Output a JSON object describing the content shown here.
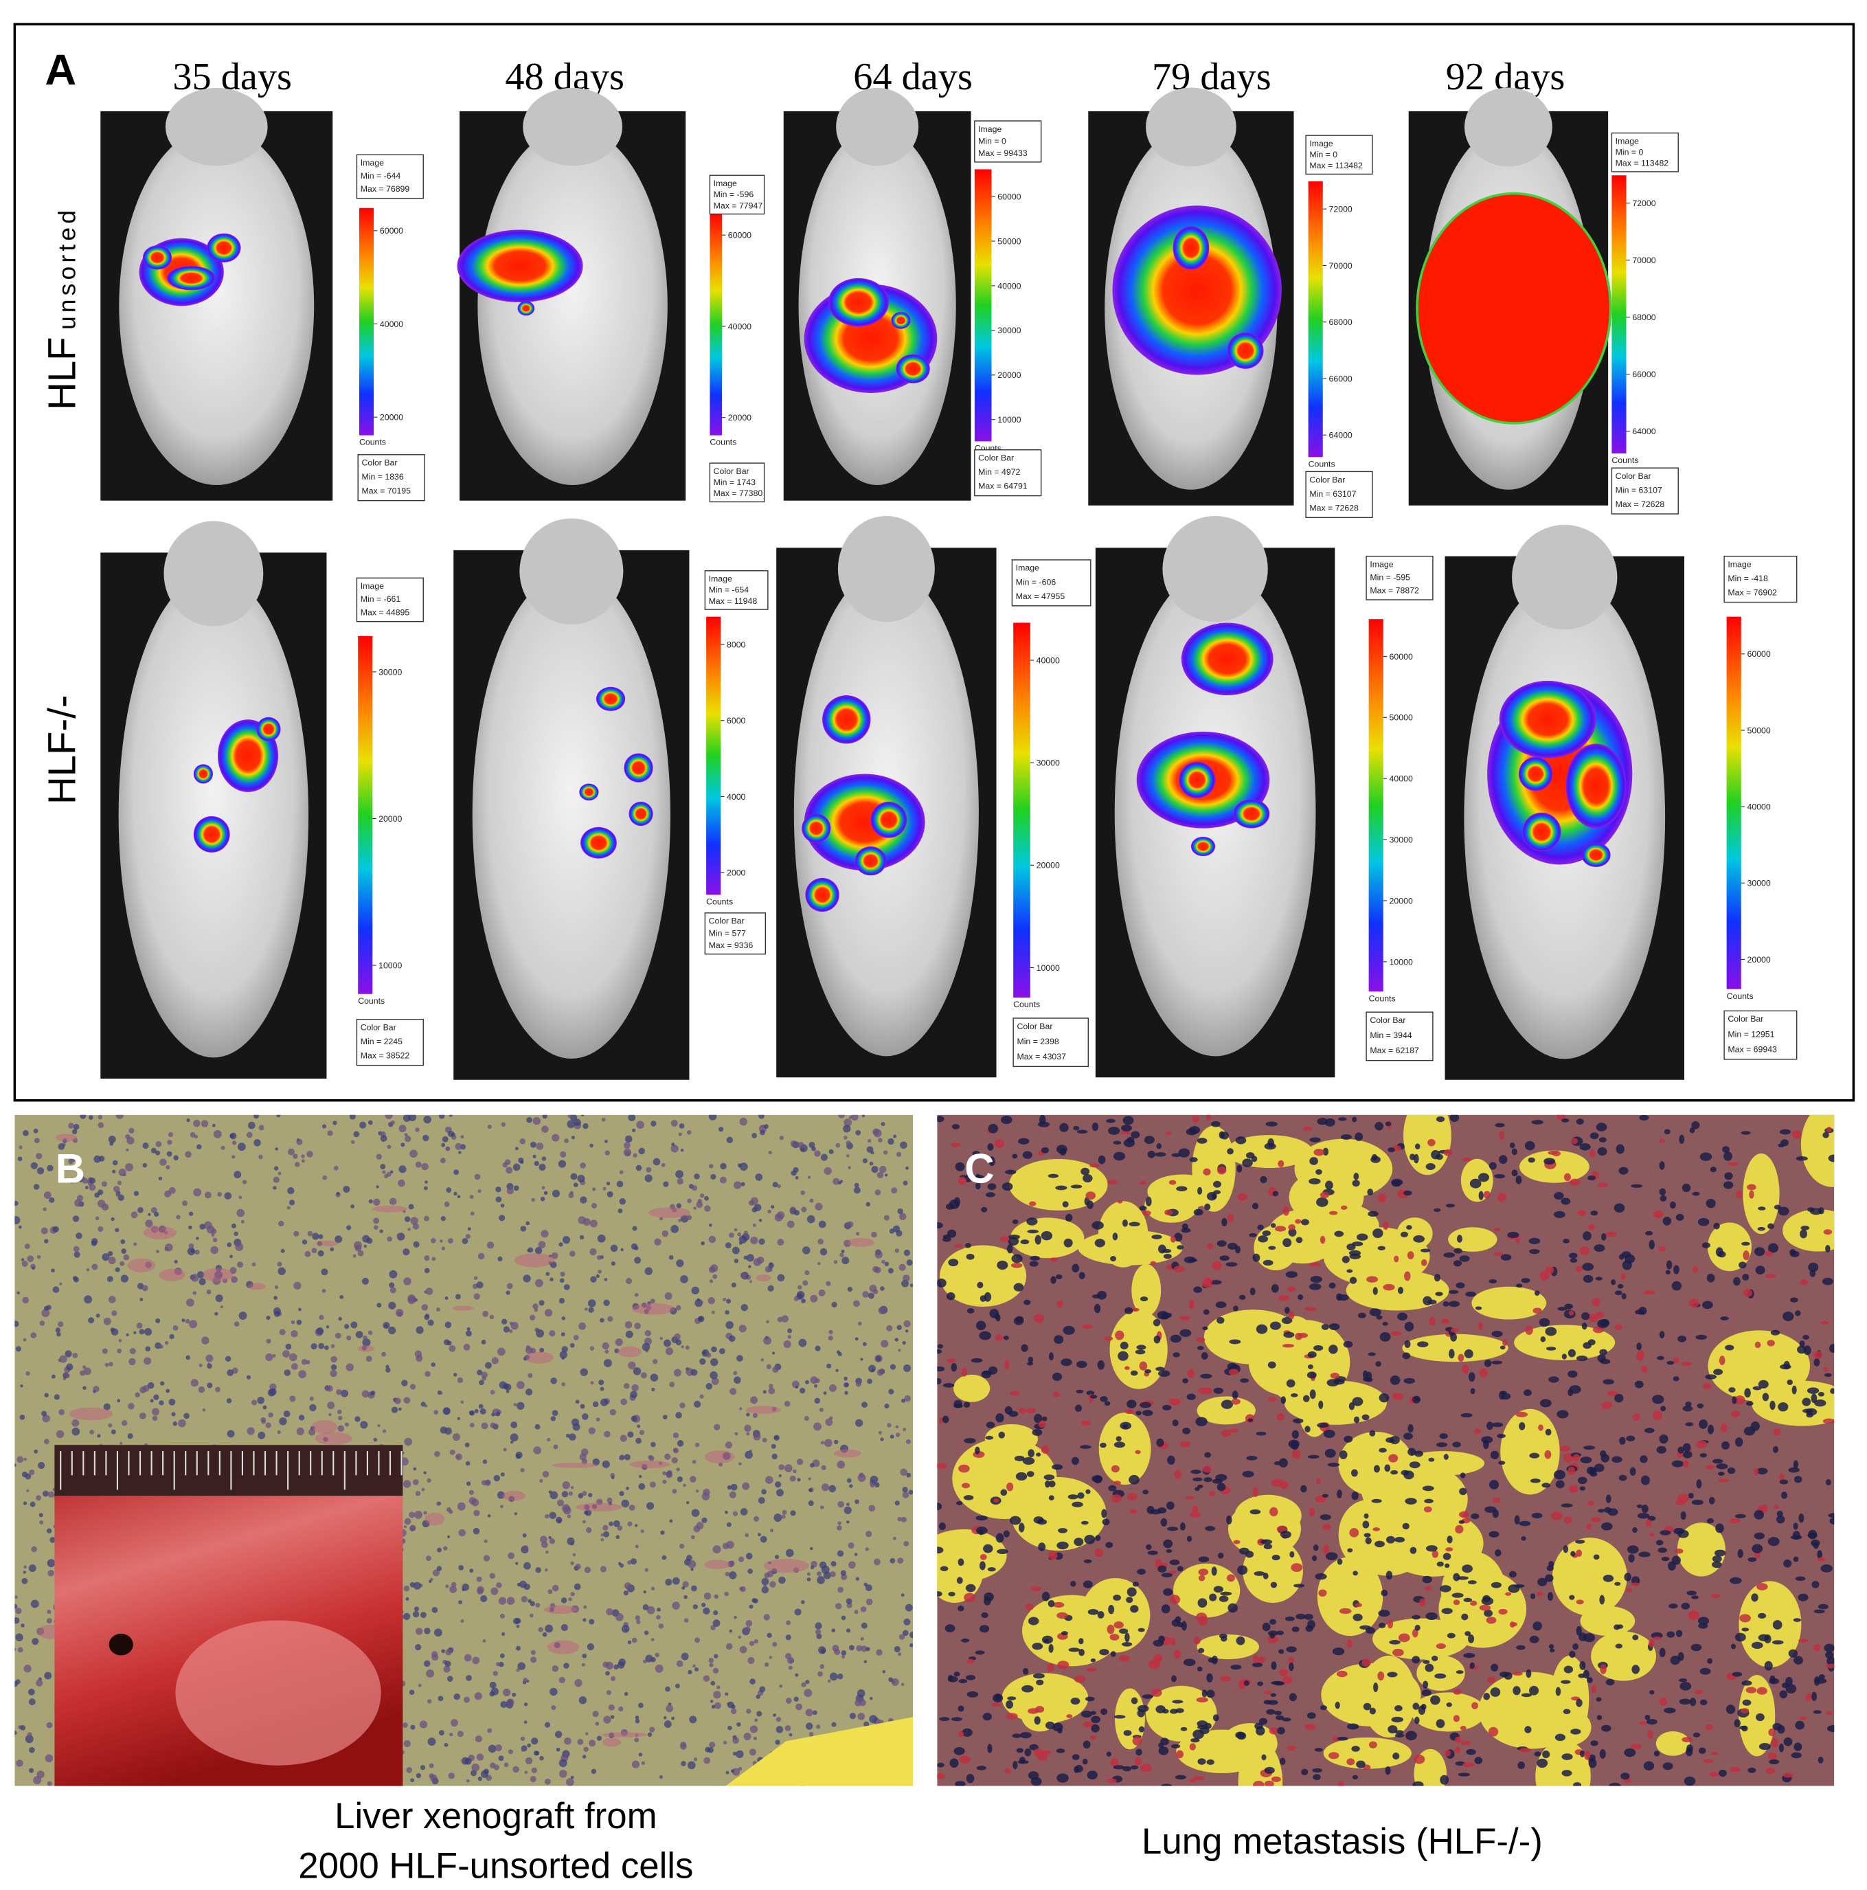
{
  "panel_a": {
    "label": "A",
    "columns": [
      "35 days",
      "48 days",
      "64 days",
      "79 days",
      "92 days"
    ],
    "rows": [
      {
        "label": "HLF",
        "subscript": "unsorted",
        "cells": [
          {
            "image_box": [
              "Image",
              "Min = -644",
              "Max = 76899"
            ],
            "ticks": [
              "60000",
              "40000",
              "20000"
            ],
            "counts": "Counts",
            "color_bar_box": [
              "Color Bar",
              "Min = 1836",
              "Max = 70195"
            ]
          },
          {
            "image_box": [
              "Image",
              "Min = -596",
              "Max = 77947"
            ],
            "ticks": [
              "60000",
              "40000",
              "20000"
            ],
            "counts": "Counts",
            "color_bar_box": [
              "Color Bar",
              "Min = 1743",
              "Max = 77380"
            ]
          },
          {
            "image_box": [
              "Image",
              "Min = 0",
              "Max = 99433"
            ],
            "ticks": [
              "60000",
              "50000",
              "40000",
              "30000",
              "20000",
              "10000"
            ],
            "counts": "Counts",
            "color_bar_box": [
              "Color Bar",
              "Min = 4972",
              "Max = 64791"
            ]
          },
          {
            "image_box": [
              "Image",
              "Min = 0",
              "Max = 113482"
            ],
            "ticks": [
              "72000",
              "70000",
              "68000",
              "66000",
              "64000"
            ],
            "counts": "Counts",
            "color_bar_box": [
              "Color Bar",
              "Min = 63107",
              "Max = 72628"
            ]
          },
          {
            "image_box": [
              "Image",
              "Min = 0",
              "Max = 113482"
            ],
            "ticks": [
              "72000",
              "70000",
              "68000",
              "66000",
              "64000"
            ],
            "counts": "Counts",
            "color_bar_box": [
              "Color Bar",
              "Min = 63107",
              "Max = 72628"
            ]
          }
        ]
      },
      {
        "label": "HLF-/-",
        "cells": [
          {
            "image_box": [
              "Image",
              "Min = -661",
              "Max = 44895"
            ],
            "ticks": [
              "30000",
              "20000",
              "10000"
            ],
            "counts": "Counts",
            "color_bar_box": [
              "Color Bar",
              "Min = 2245",
              "Max = 38522"
            ]
          },
          {
            "image_box": [
              "Image",
              "Min = -654",
              "Max = 11948"
            ],
            "ticks": [
              "8000",
              "6000",
              "4000",
              "2000"
            ],
            "counts": "Counts",
            "color_bar_box": [
              "Color Bar",
              "Min = 577",
              "Max = 9336"
            ]
          },
          {
            "image_box": [
              "Image",
              "Min = -606",
              "Max = 47955"
            ],
            "ticks": [
              "40000",
              "30000",
              "20000",
              "10000"
            ],
            "counts": "Counts",
            "color_bar_box": [
              "Color Bar",
              "Min = 2398",
              "Max = 43037"
            ]
          },
          {
            "image_box": [
              "Image",
              "Min = -595",
              "Max = 78872"
            ],
            "ticks": [
              "60000",
              "50000",
              "40000",
              "30000",
              "20000",
              "10000"
            ],
            "counts": "Counts",
            "color_bar_box": [
              "Color Bar",
              "Min = 3944",
              "Max = 62187"
            ]
          },
          {
            "image_box": [
              "Image",
              "Min = -418",
              "Max = 76902"
            ],
            "ticks": [
              "60000",
              "50000",
              "40000",
              "30000",
              "20000"
            ],
            "counts": "Counts",
            "color_bar_box": [
              "Color Bar",
              "Min = 12951",
              "Max = 69943"
            ]
          }
        ]
      }
    ]
  },
  "panel_b": {
    "label": "B",
    "caption": [
      "Liver xenograft from",
      "2000 HLF-unsorted cells"
    ]
  },
  "panel_c": {
    "label": "C",
    "caption": "Lung metastasis (HLF-/-)"
  }
}
